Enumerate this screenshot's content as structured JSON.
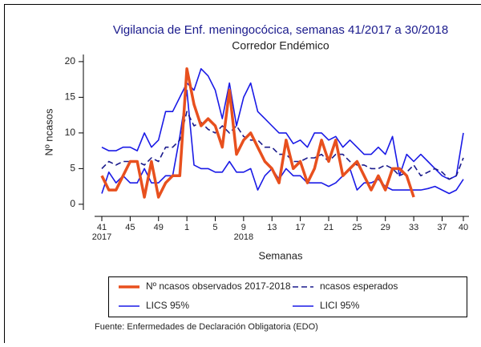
{
  "chart_data": {
    "type": "line",
    "title": "Vigilancia de Enf. meningocócica, semanas 41/2017 a 30/2018",
    "subtitle": "Corredor Endémico",
    "y_label": "Nº ncasos",
    "x_label": "Semanas",
    "source": "Fuente: Enfermedades de Declaración Obligatoria (EDO)",
    "categories": [
      "41",
      null,
      null,
      null,
      "45",
      null,
      null,
      null,
      "49",
      null,
      null,
      null,
      "1",
      null,
      null,
      null,
      "5",
      null,
      null,
      null,
      "9",
      null,
      null,
      null,
      "13",
      null,
      null,
      null,
      "17",
      null,
      null,
      null,
      "21",
      null,
      null,
      null,
      "25",
      null,
      null,
      null,
      "29",
      null,
      null,
      null,
      "33",
      null,
      null,
      null,
      "37",
      null,
      null,
      "40"
    ],
    "year_labels": [
      {
        "index": 0,
        "label": "2017"
      },
      {
        "index": 20,
        "label": "2018"
      }
    ],
    "ylim": [
      -0.8,
      21
    ],
    "yticks": [
      0,
      5,
      10,
      15,
      20
    ],
    "legend": "bottom",
    "series": [
      {
        "name": "Nº ncasos observados 2017-2018",
        "color": "#e8501e",
        "style": "thick",
        "values": [
          4,
          2,
          2,
          4,
          6,
          6,
          1,
          6,
          1,
          3,
          4,
          4,
          19,
          14,
          11,
          12,
          11,
          8,
          16,
          7,
          9,
          10,
          8,
          6,
          5,
          3,
          9,
          5,
          6,
          3,
          5,
          9,
          6,
          9,
          4,
          5,
          6,
          4,
          2,
          4,
          2,
          5,
          5,
          4,
          1,
          null,
          null,
          null,
          null,
          null,
          null,
          null
        ]
      },
      {
        "name": "ncasos esperados",
        "color": "#1a1a8c",
        "style": "dashed",
        "values": [
          5,
          6,
          5.5,
          6,
          6,
          6,
          5.5,
          6.5,
          6,
          8,
          8,
          9,
          13,
          11,
          11.5,
          10.5,
          10,
          11,
          10,
          11,
          9.5,
          9,
          9,
          8,
          8,
          7,
          7,
          6,
          6,
          6.5,
          6.5,
          7,
          6,
          7,
          7,
          6,
          5.5,
          5.5,
          5,
          5,
          5.5,
          5,
          4,
          4.5,
          5.5,
          4,
          4.5,
          5,
          4.5,
          3.5,
          4,
          6.5
        ]
      },
      {
        "name": "LICS 95%",
        "color": "#1a1ae6",
        "style": "solid",
        "values": [
          8,
          7.5,
          7.5,
          8,
          8,
          7.5,
          10,
          8,
          9,
          13,
          13,
          15,
          17,
          16,
          19,
          18,
          16,
          12,
          17,
          11,
          15,
          17,
          13,
          12,
          11,
          10,
          10,
          8.5,
          9,
          8,
          10,
          10,
          9,
          9.5,
          8,
          9,
          8,
          7,
          7,
          8,
          7,
          9.5,
          4,
          7,
          6,
          7,
          6,
          5,
          4,
          3.5,
          4,
          10
        ]
      },
      {
        "name": "LICI 95%",
        "color": "#1a1ae6",
        "style": "solid",
        "values": [
          1.5,
          4.5,
          3,
          4,
          3,
          3,
          5,
          3,
          3,
          4,
          4,
          9.5,
          16,
          5.5,
          5,
          5,
          4.5,
          4.5,
          6,
          4.5,
          4.5,
          5,
          2,
          4,
          5,
          3.5,
          5,
          4,
          4,
          3,
          3,
          3,
          2.5,
          3,
          4,
          5,
          2,
          3,
          3,
          3.5,
          2.5,
          2,
          2,
          2,
          2,
          2,
          2.2,
          2.5,
          2,
          1.5,
          2,
          3.5
        ]
      }
    ]
  }
}
